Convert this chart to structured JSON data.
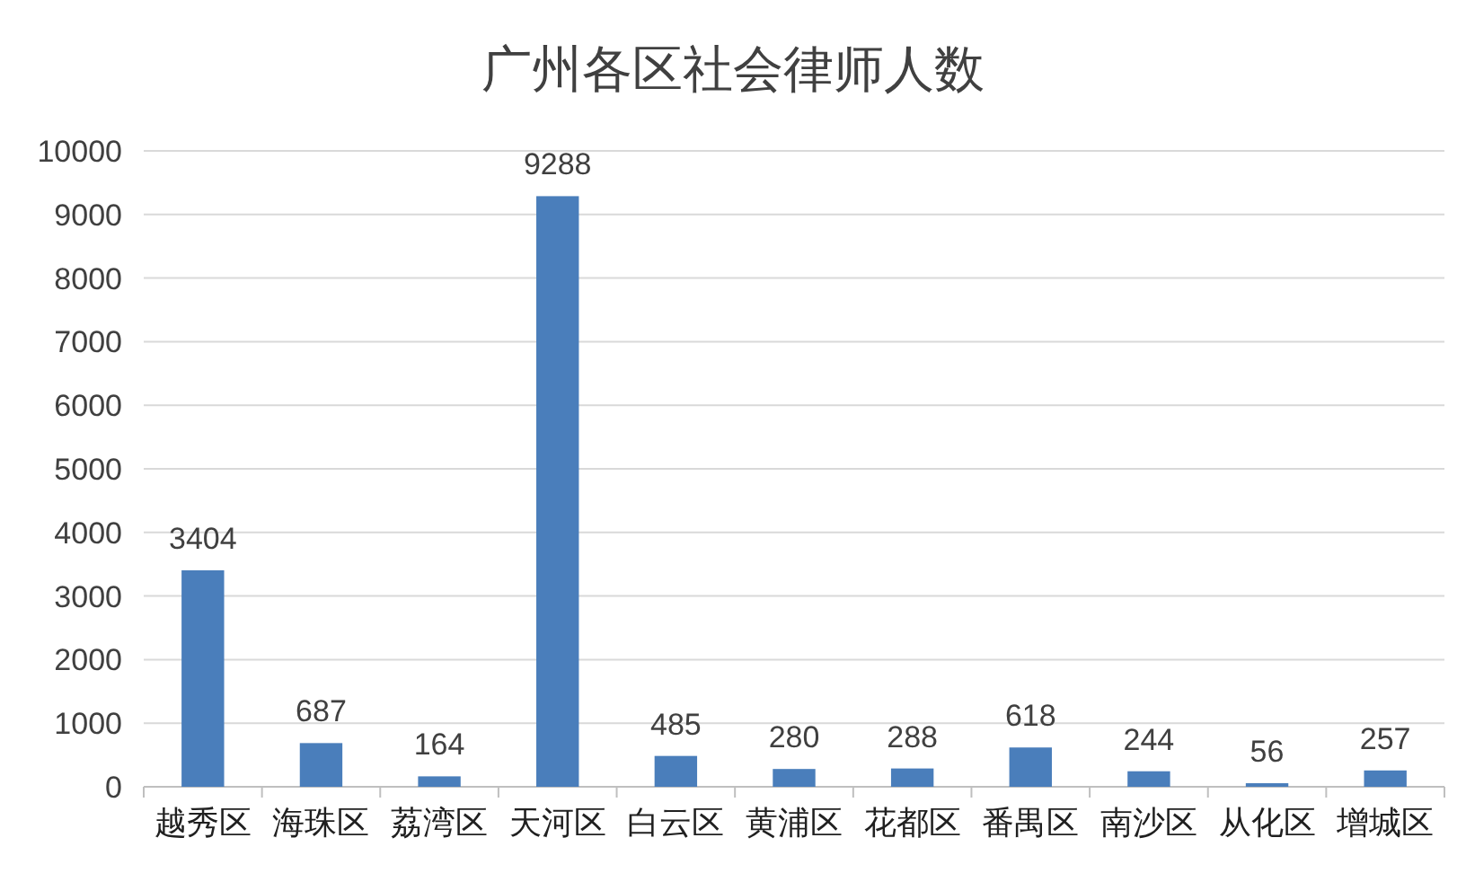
{
  "chart_data": {
    "type": "bar",
    "title": "广州各区社会律师人数",
    "categories": [
      "越秀区",
      "海珠区",
      "荔湾区",
      "天河区",
      "白云区",
      "黄浦区",
      "花都区",
      "番禺区",
      "南沙区",
      "从化区",
      "增城区"
    ],
    "values": [
      3404,
      687,
      164,
      9288,
      485,
      280,
      288,
      618,
      244,
      56,
      257
    ],
    "color": "#4a7ebb",
    "ylim": [
      0,
      10000
    ],
    "yticks": [
      0,
      1000,
      2000,
      3000,
      4000,
      5000,
      6000,
      7000,
      8000,
      9000,
      10000
    ],
    "grid": "y",
    "data_labels": true
  }
}
